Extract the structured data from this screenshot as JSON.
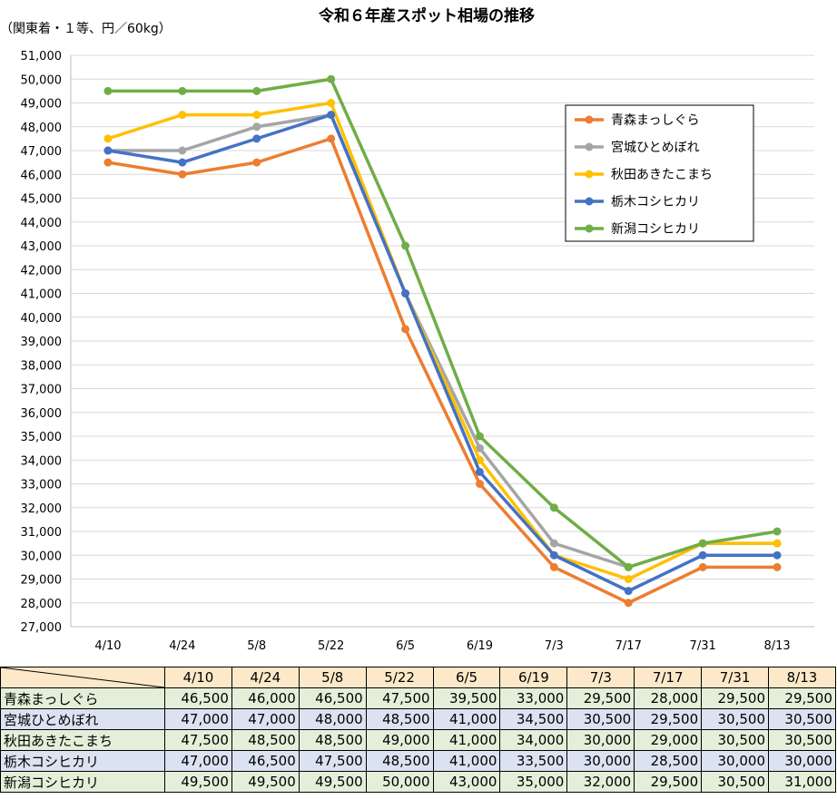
{
  "chart_data": {
    "type": "line",
    "title": "令和６年産スポット相場の推移",
    "unit_note": "（関東着・１等、円／60kg）",
    "categories": [
      "4/10",
      "4/24",
      "5/8",
      "5/22",
      "6/5",
      "6/19",
      "7/3",
      "7/17",
      "7/31",
      "8/13"
    ],
    "ylim": [
      27000,
      51000
    ],
    "ytick_step": 1000,
    "grid": true,
    "legend_position": "top-right",
    "series": [
      {
        "name": "青森まっしぐら",
        "color": "#ed7d31",
        "values": [
          46500,
          46000,
          46500,
          47500,
          39500,
          33000,
          29500,
          28000,
          29500,
          29500
        ]
      },
      {
        "name": "宮城ひとめぼれ",
        "color": "#a5a5a5",
        "values": [
          47000,
          47000,
          48000,
          48500,
          41000,
          34500,
          30500,
          29500,
          30500,
          30500
        ]
      },
      {
        "name": "秋田あきたこまち",
        "color": "#ffc000",
        "values": [
          47500,
          48500,
          48500,
          49000,
          41000,
          34000,
          30000,
          29000,
          30500,
          30500
        ]
      },
      {
        "name": "栃木コシヒカリ",
        "color": "#4472c4",
        "values": [
          47000,
          46500,
          47500,
          48500,
          41000,
          33500,
          30000,
          28500,
          30000,
          30000
        ]
      },
      {
        "name": "新潟コシヒカリ",
        "color": "#70ad47",
        "values": [
          49500,
          49500,
          49500,
          50000,
          43000,
          35000,
          32000,
          29500,
          30500,
          31000
        ]
      }
    ]
  }
}
